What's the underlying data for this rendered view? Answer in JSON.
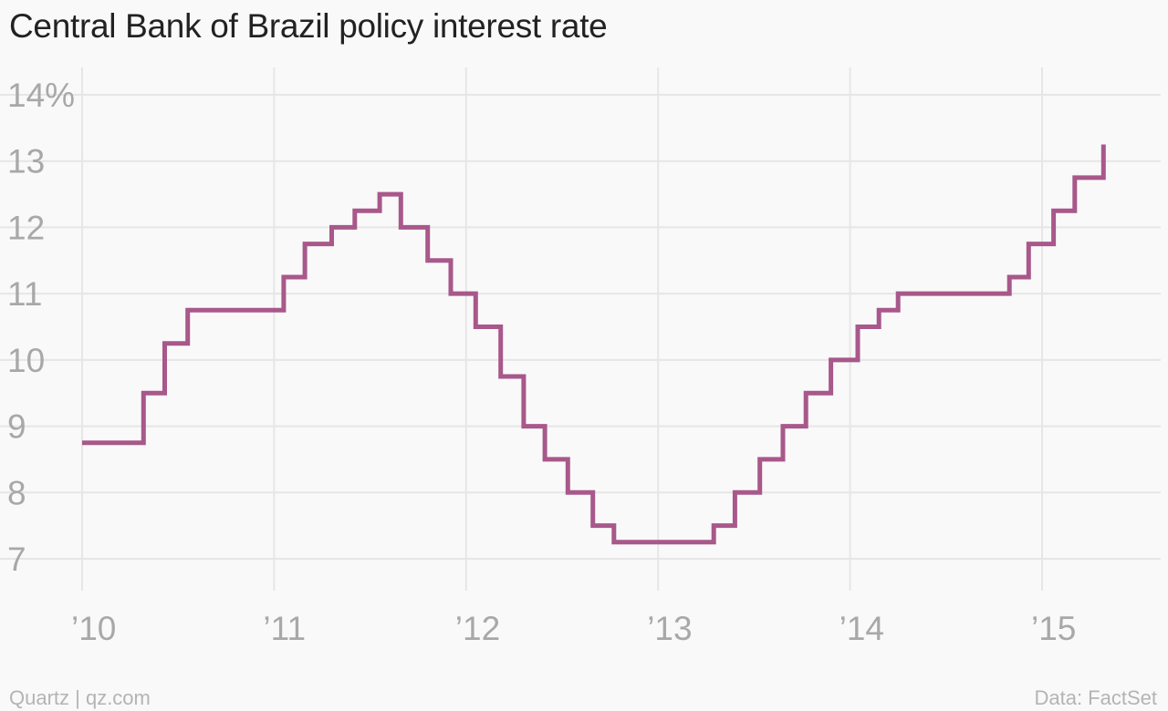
{
  "chart_data": {
    "type": "line",
    "title": "Central Bank of Brazil policy interest rate",
    "ylabel": "",
    "xlabel": "",
    "y_unit_suffix": "%",
    "ylim": [
      6.5,
      14.4
    ],
    "yticks": [
      14,
      13,
      12,
      11,
      10,
      9,
      8,
      7
    ],
    "ytick_labels": [
      "14%",
      "13",
      "12",
      "11",
      "10",
      "9",
      "8",
      "7"
    ],
    "xlim": [
      2010.0,
      2015.56
    ],
    "xticks": [
      2010,
      2011,
      2012,
      2013,
      2014,
      2015
    ],
    "xtick_labels": [
      "’10",
      "’11",
      "’12",
      "’13",
      "’14",
      "’15"
    ],
    "grid": true,
    "step": "post",
    "series": [
      {
        "color": "#a8588a",
        "points": [
          {
            "x": 2010.0,
            "y": 8.75
          },
          {
            "x": 2010.32,
            "y": 9.5
          },
          {
            "x": 2010.43,
            "y": 10.25
          },
          {
            "x": 2010.55,
            "y": 10.75
          },
          {
            "x": 2011.05,
            "y": 11.25
          },
          {
            "x": 2011.16,
            "y": 11.75
          },
          {
            "x": 2011.3,
            "y": 12.0
          },
          {
            "x": 2011.42,
            "y": 12.25
          },
          {
            "x": 2011.55,
            "y": 12.5
          },
          {
            "x": 2011.66,
            "y": 12.0
          },
          {
            "x": 2011.8,
            "y": 11.5
          },
          {
            "x": 2011.92,
            "y": 11.0
          },
          {
            "x": 2012.05,
            "y": 10.5
          },
          {
            "x": 2012.18,
            "y": 9.75
          },
          {
            "x": 2012.3,
            "y": 9.0
          },
          {
            "x": 2012.41,
            "y": 8.5
          },
          {
            "x": 2012.53,
            "y": 8.0
          },
          {
            "x": 2012.66,
            "y": 7.5
          },
          {
            "x": 2012.77,
            "y": 7.25
          },
          {
            "x": 2013.29,
            "y": 7.5
          },
          {
            "x": 2013.4,
            "y": 8.0
          },
          {
            "x": 2013.53,
            "y": 8.5
          },
          {
            "x": 2013.65,
            "y": 9.0
          },
          {
            "x": 2013.77,
            "y": 9.5
          },
          {
            "x": 2013.9,
            "y": 10.0
          },
          {
            "x": 2014.04,
            "y": 10.5
          },
          {
            "x": 2014.15,
            "y": 10.75
          },
          {
            "x": 2014.25,
            "y": 11.0
          },
          {
            "x": 2014.83,
            "y": 11.25
          },
          {
            "x": 2014.93,
            "y": 11.75
          },
          {
            "x": 2015.06,
            "y": 12.25
          },
          {
            "x": 2015.17,
            "y": 12.75
          },
          {
            "x": 2015.32,
            "y": 13.25
          }
        ]
      }
    ]
  },
  "footer": {
    "source_left": "Quartz | qz.com",
    "source_right": "Data: FactSet"
  }
}
